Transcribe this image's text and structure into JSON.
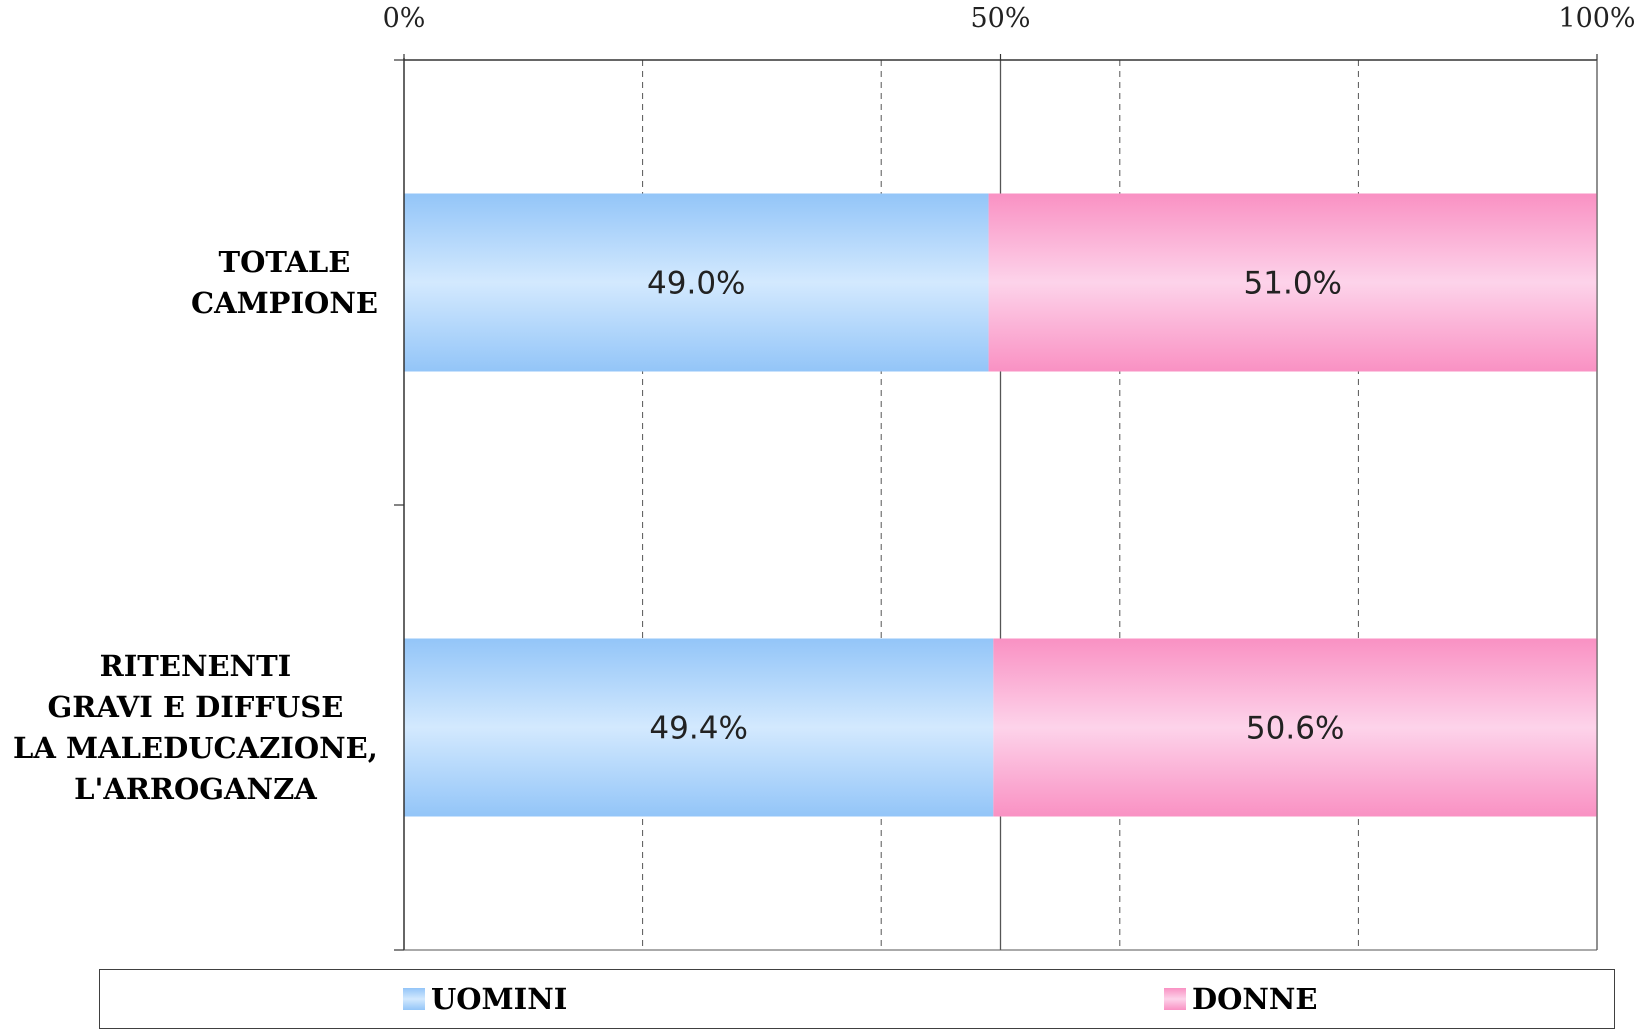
{
  "chart_data": {
    "type": "bar",
    "orientation": "horizontal",
    "stacked": "percent",
    "categories": [
      [
        "TOTALE",
        "CAMPIONE"
      ],
      [
        "RITENENTI",
        "GRAVI E DIFFUSE",
        "LA MALEDUCAZIONE,",
        "L'ARROGANZA"
      ]
    ],
    "series": [
      {
        "name": "UOMINI",
        "values": [
          49.0,
          49.4
        ],
        "labels": [
          "49.0%",
          "49.4%"
        ],
        "color": "#a8d2fb"
      },
      {
        "name": "DONNE",
        "values": [
          51.0,
          50.6
        ],
        "labels": [
          "51.0%",
          "50.6%"
        ],
        "color": "#fba6d0"
      }
    ],
    "x_ticks": [
      "0%",
      "50%",
      "100%"
    ],
    "xlim": [
      0,
      100
    ],
    "x_axis_position": "top",
    "grid": "dashed-vertical",
    "legend": "bottom"
  },
  "colors": {
    "uomini_light": "#cfe6fd",
    "uomini_dark": "#93c5f8",
    "donne_light": "#fdd0e8",
    "donne_dark": "#f991c3"
  }
}
